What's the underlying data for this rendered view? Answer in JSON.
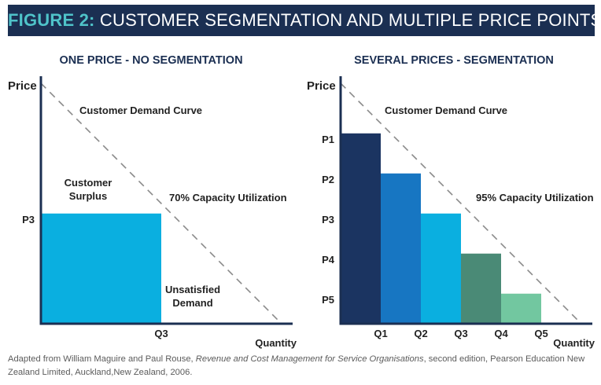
{
  "banner": {
    "prefix": "FIGURE 2:",
    "text": "CUSTOMER SEGMENTATION AND MULTIPLE PRICE POINTS",
    "bg_color": "#1b2f52",
    "prefix_color": "#4fc3c9"
  },
  "chart_data": [
    {
      "type": "bar",
      "title": "ONE PRICE - NO SEGMENTATION",
      "ylabel": "Price",
      "xlabel": "Quantity",
      "demand_curve_label": "Customer Demand Curve",
      "ylim": [
        0,
        6
      ],
      "xlim": [
        0,
        6
      ],
      "demand_curve": [
        [
          0,
          6
        ],
        [
          6,
          0
        ]
      ],
      "y_ticks": [
        {
          "label": "P3",
          "value": 2.75
        }
      ],
      "x_ticks": [
        {
          "label": "Q3",
          "value": 3
        }
      ],
      "bars": [
        {
          "label": "P3",
          "x0": 0,
          "x1": 3,
          "value": 2.75,
          "color": "#0aafe0"
        }
      ],
      "annotations": {
        "surplus_line1": "Customer",
        "surplus_line2": "Surplus",
        "capacity": "70% Capacity Utilization",
        "unsatisfied_line1": "Unsatisfied",
        "unsatisfied_line2": "Demand"
      }
    },
    {
      "type": "bar",
      "title": "SEVERAL PRICES - SEGMENTATION",
      "ylabel": "Price",
      "xlabel": "Quantity",
      "demand_curve_label": "Customer Demand Curve",
      "ylim": [
        0,
        6
      ],
      "xlim": [
        0,
        6
      ],
      "demand_curve": [
        [
          0,
          6
        ],
        [
          6,
          0
        ]
      ],
      "y_ticks": [
        {
          "label": "P1",
          "value": 4.75
        },
        {
          "label": "P2",
          "value": 3.75
        },
        {
          "label": "P3",
          "value": 2.75
        },
        {
          "label": "P4",
          "value": 1.75
        },
        {
          "label": "P5",
          "value": 0.75
        }
      ],
      "x_ticks": [
        {
          "label": "Q1",
          "value": 1
        },
        {
          "label": "Q2",
          "value": 2
        },
        {
          "label": "Q3",
          "value": 3
        },
        {
          "label": "Q4",
          "value": 4
        },
        {
          "label": "Q5",
          "value": 5
        }
      ],
      "bars": [
        {
          "label": "P1",
          "x0": 0,
          "x1": 1,
          "value": 4.75,
          "color": "#1b3461"
        },
        {
          "label": "P2",
          "x0": 1,
          "x1": 2,
          "value": 3.75,
          "color": "#1776c2"
        },
        {
          "label": "P3",
          "x0": 2,
          "x1": 3,
          "value": 2.75,
          "color": "#0aafe0"
        },
        {
          "label": "P4",
          "x0": 3,
          "x1": 4,
          "value": 1.75,
          "color": "#4a8a76"
        },
        {
          "label": "P5",
          "x0": 4,
          "x1": 5,
          "value": 0.75,
          "color": "#72c7a0"
        }
      ],
      "annotations": {
        "capacity": "95% Capacity Utilization"
      }
    }
  ],
  "footnote": {
    "part1": "Adapted from William Maguire and Paul Rouse, ",
    "italic": "Revenue and Cost Management for Service Organisations",
    "part2": ", second edition, Pearson Education New Zealand Limited, Auckland,New Zealand, 2006."
  }
}
